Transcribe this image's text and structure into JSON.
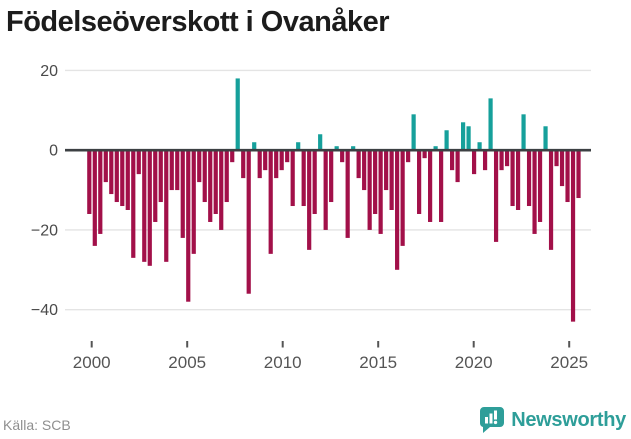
{
  "title": "Födelseöverskott i Ovanåker",
  "footer": {
    "source": "Källa: SCB",
    "brand": "Newsworthy"
  },
  "colors": {
    "negative_bar": "#a21049",
    "positive_bar": "#16a09b",
    "axis_line": "#3c4043",
    "gridline": "#e4e4e4",
    "title_text": "#1c1c1c",
    "x_tick_text": "#555555",
    "y_tick_text": "#4a4a4a",
    "source_text": "#8f8f8f",
    "brand_teal": "#2e9e99",
    "background": "#ffffff"
  },
  "chart_data": {
    "type": "bar",
    "title": "Födelseöverskott i Ovanåker",
    "xlabel": "",
    "ylabel": "",
    "grid": true,
    "legend": false,
    "x_axis": {
      "tick_years": [
        2000,
        2005,
        2010,
        2015,
        2020,
        2025
      ],
      "tick_labels": [
        "2000",
        "2005",
        "2010",
        "2015",
        "2020",
        "2025"
      ],
      "start_year": 2000,
      "end_year": 2025.5
    },
    "y_axis": {
      "ticks": [
        20,
        0,
        -20,
        -40
      ],
      "tick_labels": [
        "20",
        "0",
        "−20",
        "−40"
      ],
      "range": [
        -46,
        22
      ]
    },
    "values": [
      -16,
      -24,
      -21,
      -8,
      -11,
      -13,
      -14,
      -15,
      -27,
      -6,
      -28,
      -29,
      -18,
      -13,
      -28,
      -10,
      -10,
      -22,
      -38,
      -26,
      -8,
      -13,
      -18,
      -16,
      -20,
      -13,
      -3,
      18,
      -7,
      -36,
      2,
      -7,
      -5,
      -26,
      -7,
      -5,
      -3,
      -14,
      2,
      -14,
      -25,
      -16,
      4,
      -20,
      -13,
      1,
      -3,
      -22,
      1,
      -7,
      -10,
      -20,
      -16,
      -21,
      -10,
      -15,
      -30,
      -24,
      -3,
      9,
      -16,
      -2,
      -18,
      1,
      -18,
      5,
      -5,
      -8,
      7,
      6,
      -6,
      2,
      -5,
      13,
      -23,
      -5,
      -4,
      -14,
      -15,
      9,
      -14,
      -21,
      -18,
      6,
      -25,
      -4,
      -9,
      -13,
      -43,
      -12
    ]
  }
}
